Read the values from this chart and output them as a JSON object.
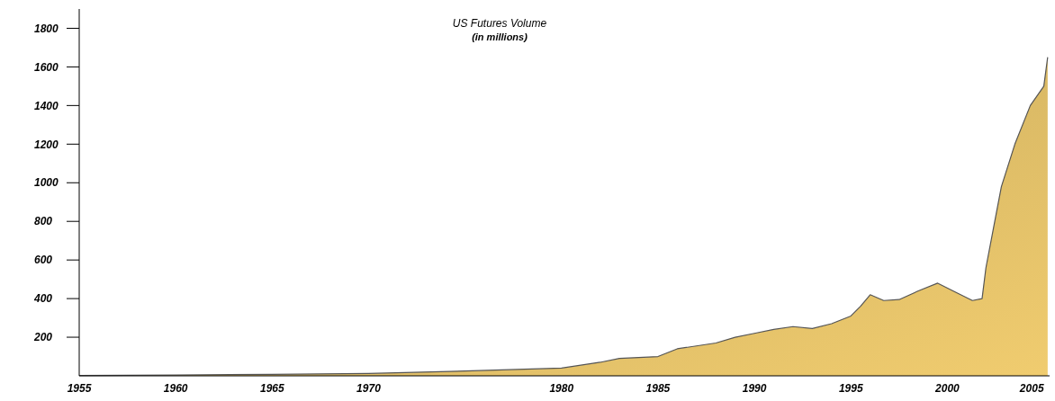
{
  "chart_data": {
    "type": "area",
    "title": "US Futures Volume",
    "subtitle": "(in millions)",
    "x": [
      1955,
      1960,
      1965,
      1970,
      1975,
      1980,
      1982,
      1983,
      1985,
      1986,
      1988,
      1989,
      1990,
      1991,
      1992,
      1993,
      1994,
      1995,
      1995.5,
      1996,
      1996.7,
      1997.5,
      1998.5,
      1999.5,
      2000.5,
      2001.3,
      2001.8,
      2002,
      2002.8,
      2003.5,
      2004.3,
      2005,
      2005.2
    ],
    "series": [
      {
        "color": "#c2a55a",
        "values": [
          2,
          4,
          8,
          12,
          25,
          40,
          70,
          90,
          100,
          140,
          170,
          200,
          220,
          240,
          255,
          245,
          270,
          310,
          360,
          420,
          390,
          395,
          440,
          480,
          430,
          390,
          400,
          560,
          980,
          1200,
          1400,
          1500,
          1650
        ]
      }
    ],
    "xlim": [
      1955,
      2005.3
    ],
    "xticks": [
      1955,
      1960,
      1965,
      1970,
      1980,
      1985,
      1990,
      1995,
      2000,
      2005
    ],
    "ylim": [
      0,
      1900
    ],
    "yticks": [
      200,
      400,
      600,
      800,
      1000,
      1200,
      1400,
      1600,
      1800
    ],
    "grid": false
  }
}
